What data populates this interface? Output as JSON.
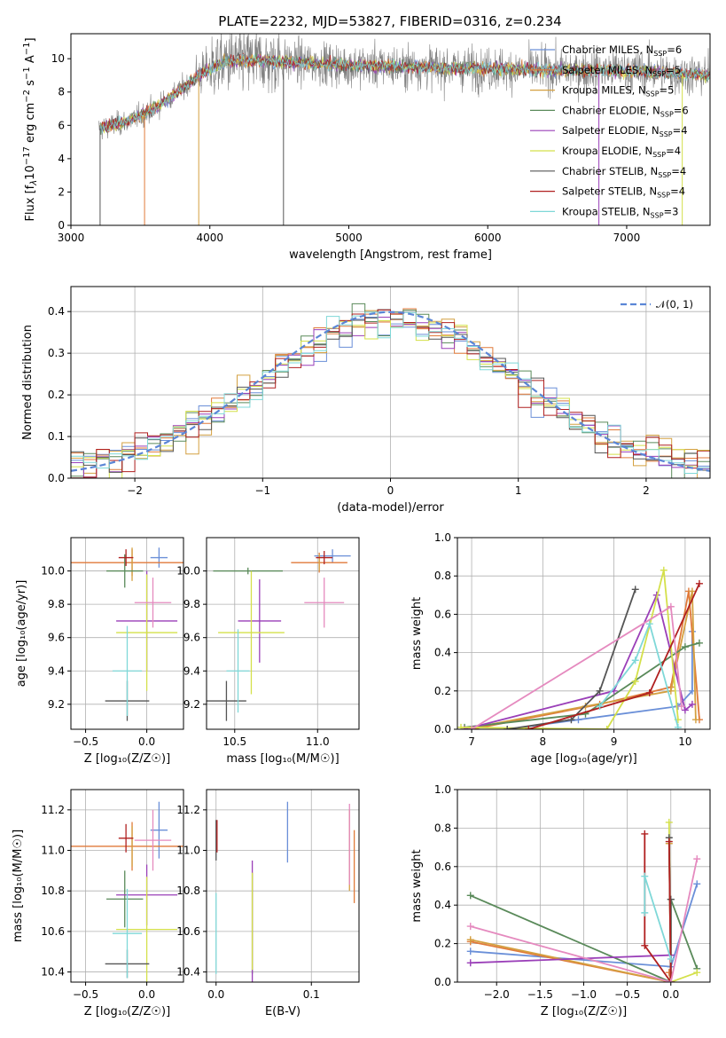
{
  "chart_data": [
    {
      "id": "spectrum",
      "type": "line",
      "title": "PLATE=2232, MJD=53827, FIBERID=0316, z=0.234",
      "xlabel": "wavelength [Angstrom, rest frame]",
      "ylabel_parts": [
        "Flux [f",
        "λ",
        "10",
        "−17",
        " erg cm",
        "−2",
        " s",
        "−1",
        " A",
        "−1",
        "]"
      ],
      "xlim": [
        3000,
        7600
      ],
      "ylim": [
        0,
        11.5
      ],
      "xticks": [
        3000,
        4000,
        5000,
        6000,
        7000
      ],
      "yticks": [
        0,
        2,
        4,
        6,
        8,
        10
      ],
      "grid": false,
      "legend_position": "right",
      "legend": [
        {
          "label": "Chabrier MILES, N",
          "sub": "SSP",
          "tail": "=6",
          "color": "#6a8fd8"
        },
        {
          "label": "Salpeter MILES, N",
          "sub": "SSP",
          "tail": "=5",
          "color": "#e07a3a"
        },
        {
          "label": "Kroupa MILES, N",
          "sub": "SSP",
          "tail": "=5",
          "color": "#d4a040"
        },
        {
          "label": "Chabrier ELODIE, N",
          "sub": "SSP",
          "tail": "=6",
          "color": "#5a8a5a"
        },
        {
          "label": "Salpeter ELODIE, N",
          "sub": "SSP",
          "tail": "=4",
          "color": "#9a3fb8"
        },
        {
          "label": "Kroupa ELODIE, N",
          "sub": "SSP",
          "tail": "=4",
          "color": "#d4e04a"
        },
        {
          "label": "Chabrier STELIB, N",
          "sub": "SSP",
          "tail": "=4",
          "color": "#555555"
        },
        {
          "label": "Salpeter STELIB, N",
          "sub": "SSP",
          "tail": "=4",
          "color": "#b02020"
        },
        {
          "label": "Kroupa STELIB, N",
          "sub": "SSP",
          "tail": "=3",
          "color": "#7fd8d8"
        }
      ],
      "data_color": "#808080",
      "model_color": "#8ad8e0",
      "continuum": [
        [
          3200,
          5.8
        ],
        [
          3400,
          6.2
        ],
        [
          3600,
          7.0
        ],
        [
          3800,
          8.2
        ],
        [
          3950,
          9.2
        ],
        [
          4100,
          9.8
        ],
        [
          4300,
          9.9
        ],
        [
          4600,
          9.8
        ],
        [
          5000,
          9.6
        ],
        [
          5500,
          9.5
        ],
        [
          6000,
          9.4
        ],
        [
          6500,
          9.3
        ],
        [
          7000,
          9.3
        ],
        [
          7400,
          9.1
        ],
        [
          7600,
          9.0
        ]
      ],
      "drops": [
        3210,
        3530,
        3920,
        4530,
        6800,
        7400
      ]
    },
    {
      "id": "residuals",
      "type": "histogram",
      "xlabel": "(data-model)/error",
      "ylabel": "Normed distribution",
      "xlim": [
        -2.5,
        2.5
      ],
      "ylim": [
        0,
        0.46
      ],
      "xticks": [
        -2,
        -1,
        0,
        1,
        2
      ],
      "yticks": [
        0.0,
        0.1,
        0.2,
        0.3,
        0.4
      ],
      "grid": true,
      "legend_position": "top-right",
      "gaussian_label": "𝒩(0, 1)",
      "gaussian_color": "#5b86d6",
      "bin_width": 0.1
    },
    {
      "id": "age-vs-Z",
      "type": "scatter",
      "xlabel": "Z [log₁₀(Z/Z☉)]",
      "ylabel": "age  [log₁₀(age/yr)]",
      "xlim": [
        -0.62,
        0.3
      ],
      "ylim": [
        9.05,
        10.2
      ],
      "xticks": [
        -0.5,
        0.0
      ],
      "yticks": [
        9.2,
        9.4,
        9.6,
        9.8,
        10.0
      ],
      "grid": true,
      "points": [
        {
          "x": 0.1,
          "y": 10.08,
          "xerr": 0.07,
          "yerr": 0.06,
          "color": "#6a8fd8"
        },
        {
          "x": -0.12,
          "y": 10.05,
          "xerr": 0.5,
          "yerr": 0.08,
          "color": "#e07a3a"
        },
        {
          "x": -0.12,
          "y": 10.04,
          "xerr": 0.0,
          "yerr": 0.1,
          "color": "#d4a040"
        },
        {
          "x": -0.18,
          "y": 10.0,
          "xerr": 0.15,
          "yerr": 0.1,
          "color": "#5a8a5a"
        },
        {
          "x": 0.0,
          "y": 9.7,
          "xerr": 0.25,
          "yerr": 0.3,
          "color": "#9a3fb8"
        },
        {
          "x": 0.0,
          "y": 9.63,
          "xerr": 0.25,
          "yerr": 0.35,
          "color": "#d4e04a"
        },
        {
          "x": -0.16,
          "y": 9.22,
          "xerr": 0.18,
          "yerr": 0.12,
          "color": "#555555"
        },
        {
          "x": -0.17,
          "y": 10.08,
          "xerr": 0.06,
          "yerr": 0.05,
          "color": "#b02020"
        },
        {
          "x": -0.16,
          "y": 9.4,
          "xerr": 0.12,
          "yerr": 0.27,
          "color": "#7fd8d8"
        },
        {
          "x": 0.05,
          "y": 9.81,
          "xerr": 0.15,
          "yerr": 0.15,
          "color": "#e58abf"
        }
      ]
    },
    {
      "id": "age-vs-mass",
      "type": "scatter",
      "xlabel": "mass [log₁₀(M/M☉)]",
      "ylabel": "",
      "xlim": [
        10.33,
        11.25
      ],
      "ylim": [
        9.05,
        10.2
      ],
      "xticks": [
        10.5,
        11.0
      ],
      "yticks": [
        9.2,
        9.4,
        9.6,
        9.8,
        10.0
      ],
      "grid": true,
      "points": [
        {
          "x": 11.09,
          "y": 10.09,
          "xerr": 0.11,
          "yerr": 0.04,
          "color": "#6a8fd8"
        },
        {
          "x": 11.01,
          "y": 10.05,
          "xerr": 0.17,
          "yerr": 0.06,
          "color": "#e07a3a"
        },
        {
          "x": 11.01,
          "y": 10.05,
          "xerr": 0.0,
          "yerr": 0.05,
          "color": "#d4a040"
        },
        {
          "x": 10.58,
          "y": 10.0,
          "xerr": 0.21,
          "yerr": 0.02,
          "color": "#5a8a5a"
        },
        {
          "x": 10.65,
          "y": 9.7,
          "xerr": 0.13,
          "yerr": 0.25,
          "color": "#9a3fb8"
        },
        {
          "x": 10.6,
          "y": 9.63,
          "xerr": 0.2,
          "yerr": 0.37,
          "color": "#d4e04a"
        },
        {
          "x": 10.45,
          "y": 9.22,
          "xerr": 0.12,
          "yerr": 0.12,
          "color": "#555555"
        },
        {
          "x": 11.04,
          "y": 10.08,
          "xerr": 0.05,
          "yerr": 0.04,
          "color": "#b02020"
        },
        {
          "x": 10.52,
          "y": 9.4,
          "xerr": 0.07,
          "yerr": 0.25,
          "color": "#7fd8d8"
        },
        {
          "x": 11.04,
          "y": 9.81,
          "xerr": 0.12,
          "yerr": 0.15,
          "color": "#e58abf"
        }
      ]
    },
    {
      "id": "massweight-vs-age",
      "type": "line",
      "xlabel": "age  [log₁₀(age/yr)]",
      "ylabel": "mass weight",
      "xlim": [
        6.8,
        10.35
      ],
      "ylim": [
        0,
        1.0
      ],
      "xticks": [
        7,
        8,
        9,
        10
      ],
      "yticks": [
        0.0,
        0.2,
        0.4,
        0.6,
        0.8,
        1.0
      ],
      "grid": true,
      "series": [
        {
          "color": "#6a8fd8",
          "points": [
            [
              7.5,
              0.0
            ],
            [
              8.5,
              0.05
            ],
            [
              9.9,
              0.12
            ],
            [
              10.1,
              0.2
            ],
            [
              10.1,
              0.51
            ]
          ]
        },
        {
          "color": "#e07a3a",
          "points": [
            [
              7.0,
              0.0
            ],
            [
              8.8,
              0.13
            ],
            [
              9.8,
              0.22
            ],
            [
              10.05,
              0.72
            ],
            [
              10.2,
              0.05
            ]
          ]
        },
        {
          "color": "#d4a040",
          "points": [
            [
              6.9,
              0.0
            ],
            [
              8.6,
              0.12
            ],
            [
              9.8,
              0.2
            ],
            [
              10.1,
              0.72
            ],
            [
              10.15,
              0.05
            ]
          ]
        },
        {
          "color": "#5a8a5a",
          "points": [
            [
              6.9,
              0.01
            ],
            [
              8.6,
              0.08
            ],
            [
              10.0,
              0.43
            ],
            [
              10.2,
              0.45
            ]
          ]
        },
        {
          "color": "#9a3fb8",
          "points": [
            [
              6.9,
              0.0
            ],
            [
              9.0,
              0.2
            ],
            [
              9.6,
              0.7
            ],
            [
              10.0,
              0.1
            ],
            [
              10.1,
              0.13
            ]
          ]
        },
        {
          "color": "#d4e04a",
          "points": [
            [
              6.85,
              0.01
            ],
            [
              8.9,
              0.0
            ],
            [
              9.3,
              0.25
            ],
            [
              9.7,
              0.83
            ],
            [
              9.9,
              0.05
            ]
          ]
        },
        {
          "color": "#555555",
          "points": [
            [
              7.5,
              0.0
            ],
            [
              8.4,
              0.05
            ],
            [
              8.8,
              0.2
            ],
            [
              9.3,
              0.73
            ]
          ]
        },
        {
          "color": "#b02020",
          "points": [
            [
              7.8,
              0.0
            ],
            [
              9.5,
              0.19
            ],
            [
              10.2,
              0.76
            ]
          ]
        },
        {
          "color": "#7fd8d8",
          "points": [
            [
              8.8,
              0.12
            ],
            [
              9.3,
              0.36
            ],
            [
              9.5,
              0.55
            ],
            [
              9.9,
              0.01
            ]
          ]
        },
        {
          "color": "#e58abf",
          "points": [
            [
              7.0,
              0.0
            ],
            [
              9.8,
              0.64
            ],
            [
              9.95,
              0.12
            ]
          ]
        }
      ]
    },
    {
      "id": "mass-vs-Z",
      "type": "scatter",
      "xlabel": "Z [log₁₀(Z/Z☉)]",
      "ylabel": "mass [log₁₀(M/M☉)]",
      "xlim": [
        -0.62,
        0.3
      ],
      "ylim": [
        10.35,
        11.3
      ],
      "xticks": [
        -0.5,
        0.0
      ],
      "yticks": [
        10.4,
        10.6,
        10.8,
        11.0,
        11.2
      ],
      "grid": true,
      "points": [
        {
          "x": 0.1,
          "y": 11.1,
          "xerr": 0.07,
          "yerr": 0.14,
          "color": "#6a8fd8"
        },
        {
          "x": -0.12,
          "y": 11.02,
          "xerr": 0.5,
          "yerr": 0.12,
          "color": "#e07a3a"
        },
        {
          "x": -0.12,
          "y": 11.02,
          "xerr": 0.0,
          "yerr": 0.1,
          "color": "#d4a040"
        },
        {
          "x": -0.18,
          "y": 10.76,
          "xerr": 0.15,
          "yerr": 0.14,
          "color": "#5a8a5a"
        },
        {
          "x": 0.0,
          "y": 10.78,
          "xerr": 0.25,
          "yerr": 0.15,
          "color": "#9a3fb8"
        },
        {
          "x": 0.0,
          "y": 10.61,
          "xerr": 0.25,
          "yerr": 0.26,
          "color": "#d4e04a"
        },
        {
          "x": -0.16,
          "y": 10.44,
          "xerr": 0.18,
          "yerr": 0.07,
          "color": "#555555"
        },
        {
          "x": -0.17,
          "y": 11.06,
          "xerr": 0.06,
          "yerr": 0.07,
          "color": "#b02020"
        },
        {
          "x": -0.16,
          "y": 10.59,
          "xerr": 0.12,
          "yerr": 0.22,
          "color": "#7fd8d8"
        },
        {
          "x": 0.05,
          "y": 11.05,
          "xerr": 0.15,
          "yerr": 0.15,
          "color": "#e58abf"
        }
      ]
    },
    {
      "id": "mass-vs-ebv",
      "type": "scatter",
      "xlabel": "E(B-V)",
      "ylabel": "",
      "xlim": [
        -0.01,
        0.15
      ],
      "ylim": [
        10.35,
        11.3
      ],
      "xticks": [
        0.0,
        0.1
      ],
      "yticks": [
        10.4,
        10.6,
        10.8,
        11.0,
        11.2
      ],
      "grid": true,
      "points": [
        {
          "x": 0.075,
          "y": 11.09,
          "xerr": 0.0,
          "yerr": 0.15,
          "color": "#6a8fd8"
        },
        {
          "x": 0.145,
          "y": 10.92,
          "xerr": 0.0,
          "yerr": 0.18,
          "color": "#e07a3a"
        },
        {
          "x": 0.14,
          "y": 11.0,
          "xerr": 0.0,
          "yerr": 0.2,
          "color": "#d4a040"
        },
        {
          "x": 0.038,
          "y": 10.64,
          "xerr": 0.0,
          "yerr": 0.25,
          "color": "#5a8a5a"
        },
        {
          "x": 0.038,
          "y": 10.65,
          "xerr": 0.0,
          "yerr": 0.3,
          "color": "#9a3fb8"
        },
        {
          "x": 0.038,
          "y": 10.65,
          "xerr": 0.0,
          "yerr": 0.24,
          "color": "#d4e04a"
        },
        {
          "x": 0.0,
          "y": 11.05,
          "xerr": 0.0,
          "yerr": 0.1,
          "color": "#555555"
        },
        {
          "x": 0.001,
          "y": 11.07,
          "xerr": 0.0,
          "yerr": 0.08,
          "color": "#b02020"
        },
        {
          "x": 0.0,
          "y": 10.59,
          "xerr": 0.0,
          "yerr": 0.2,
          "color": "#7fd8d8"
        },
        {
          "x": 0.14,
          "y": 11.03,
          "xerr": 0.0,
          "yerr": 0.2,
          "color": "#e58abf"
        }
      ]
    },
    {
      "id": "massweight-vs-Z",
      "type": "line",
      "xlabel": "Z [log₁₀(Z/Z☉)]",
      "ylabel": "mass weight",
      "xlim": [
        -2.45,
        0.45
      ],
      "ylim": [
        0,
        1.0
      ],
      "xticks": [
        -2.0,
        -1.5,
        -1.0,
        -0.5,
        0.0
      ],
      "yticks": [
        0.0,
        0.2,
        0.4,
        0.6,
        0.8,
        1.0
      ],
      "grid": true,
      "series": [
        {
          "color": "#6a8fd8",
          "points": [
            [
              -2.3,
              0.16
            ],
            [
              0.0,
              0.08
            ],
            [
              0.3,
              0.51
            ]
          ]
        },
        {
          "color": "#e07a3a",
          "points": [
            [
              -2.3,
              0.21
            ],
            [
              0.0,
              0.0
            ],
            [
              -0.02,
              0.05
            ]
          ]
        },
        {
          "color": "#d4a040",
          "points": [
            [
              -2.3,
              0.22
            ],
            [
              0.0,
              0.0
            ],
            [
              -0.02,
              0.72
            ]
          ]
        },
        {
          "color": "#5a8a5a",
          "points": [
            [
              -2.3,
              0.45
            ],
            [
              0.0,
              0.0
            ],
            [
              0.0,
              0.43
            ],
            [
              0.3,
              0.07
            ]
          ]
        },
        {
          "color": "#9a3fb8",
          "points": [
            [
              -2.3,
              0.1
            ],
            [
              0.0,
              0.14
            ],
            [
              0.0,
              0.0
            ]
          ]
        },
        {
          "color": "#d4e04a",
          "points": [
            [
              -0.02,
              0.83
            ],
            [
              0.0,
              0.0
            ],
            [
              0.3,
              0.05
            ]
          ]
        },
        {
          "color": "#555555",
          "points": [
            [
              -0.02,
              0.75
            ],
            [
              0.0,
              0.0
            ],
            [
              0.0,
              0.43
            ]
          ]
        },
        {
          "color": "#b02020",
          "points": [
            [
              -0.3,
              0.77
            ],
            [
              -0.3,
              0.19
            ],
            [
              0.0,
              0.0
            ],
            [
              -0.02,
              0.73
            ]
          ]
        },
        {
          "color": "#7fd8d8",
          "points": [
            [
              -0.3,
              0.36
            ],
            [
              -0.3,
              0.55
            ],
            [
              0.0,
              0.12
            ]
          ]
        },
        {
          "color": "#e58abf",
          "points": [
            [
              -2.3,
              0.29
            ],
            [
              0.0,
              0.0
            ],
            [
              0.3,
              0.64
            ]
          ]
        }
      ]
    }
  ]
}
